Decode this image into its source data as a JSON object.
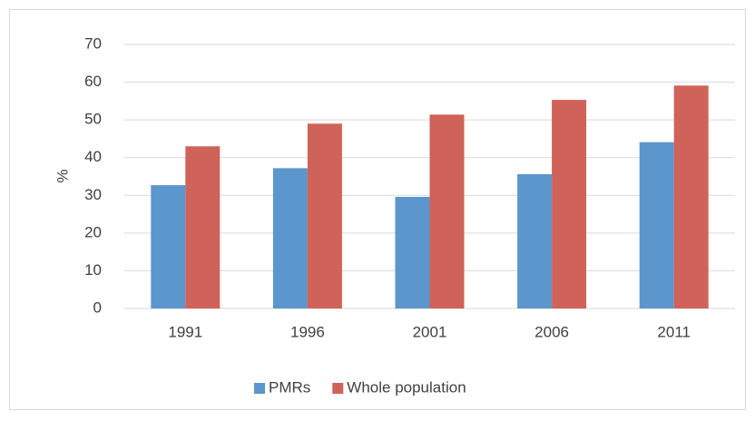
{
  "chart_data": {
    "type": "bar",
    "y_label": "%",
    "categories": [
      "1991",
      "1996",
      "2001",
      "2006",
      "2011"
    ],
    "series": [
      {
        "name": "PMRs",
        "color": "#5b96cc",
        "values": [
          32.7,
          37.2,
          29.6,
          35.6,
          44.1
        ]
      },
      {
        "name": "Whole population",
        "color": "#cf6259",
        "values": [
          43,
          49,
          51.4,
          55.3,
          59.1
        ]
      }
    ],
    "ylim": [
      0,
      70
    ],
    "yticks": [
      0,
      10,
      20,
      30,
      40,
      50,
      60,
      70
    ],
    "grid": true,
    "legend": "bottom"
  }
}
